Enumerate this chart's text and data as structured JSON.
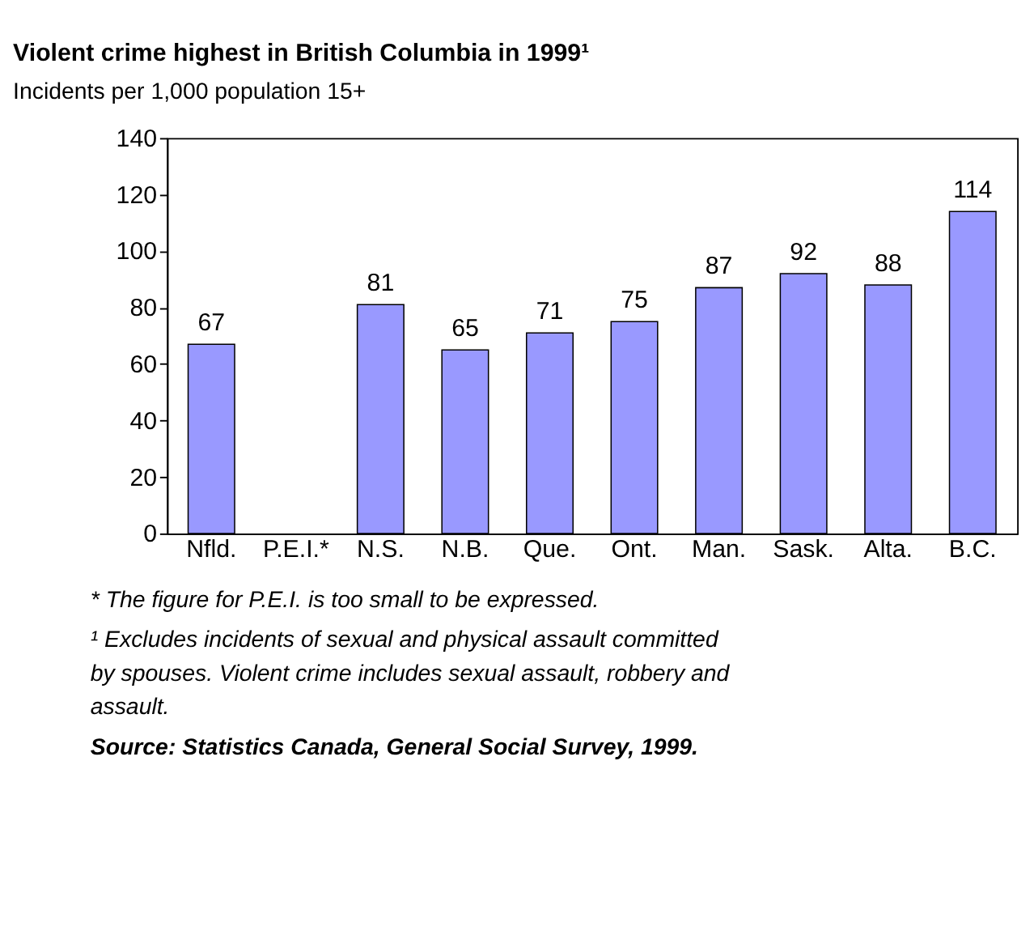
{
  "chart_data": {
    "type": "bar",
    "title": "Violent crime highest in British Columbia in 1999¹",
    "subtitle": "Incidents per 1,000 population 15+",
    "categories": [
      "Nfld.",
      "P.E.I.*",
      "N.S.",
      "N.B.",
      "Que.",
      "Ont.",
      "Man.",
      "Sask.",
      "Alta.",
      "B.C."
    ],
    "values": [
      67,
      null,
      81,
      65,
      71,
      75,
      87,
      92,
      88,
      114
    ],
    "color": "#9999ff",
    "ylim": [
      0,
      140
    ],
    "yticks": [
      0,
      20,
      40,
      60,
      80,
      100,
      120,
      140
    ],
    "grid": false,
    "data_labels": true,
    "annotations": [
      "* The figure for P.E.I. is too small to be expressed.",
      "¹ Excludes incidents of sexual and physical assault committed by spouses. Violent crime includes sexual assault, robbery and assault.",
      "Source: Statistics Canada, General Social Survey, 1999."
    ]
  }
}
